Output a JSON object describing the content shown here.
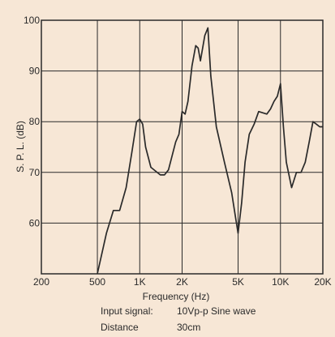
{
  "chart_data": {
    "type": "line",
    "xlabel": "Frequency (Hz)",
    "ylabel": "S. P. L. (dB)",
    "x_scale": "log",
    "xlim": [
      200,
      20000
    ],
    "ylim": [
      50,
      100
    ],
    "x_ticks": [
      {
        "value": 200,
        "label": "200"
      },
      {
        "value": 500,
        "label": "500"
      },
      {
        "value": 1000,
        "label": "1K"
      },
      {
        "value": 2000,
        "label": "2K"
      },
      {
        "value": 5000,
        "label": "5K"
      },
      {
        "value": 10000,
        "label": "10K"
      },
      {
        "value": 20000,
        "label": "20K"
      }
    ],
    "y_ticks": [
      {
        "value": 60,
        "label": "60"
      },
      {
        "value": 70,
        "label": "70"
      },
      {
        "value": 80,
        "label": "80"
      },
      {
        "value": 90,
        "label": "90"
      },
      {
        "value": 100,
        "label": "100"
      }
    ],
    "grid": true,
    "colors": {
      "background": "#f7e7d6",
      "line": "#2a2a2a",
      "grid": "#2a2a2a"
    },
    "series": [
      {
        "points": [
          [
            500,
            50
          ],
          [
            580,
            58
          ],
          [
            650,
            62.5
          ],
          [
            720,
            62.5
          ],
          [
            800,
            67
          ],
          [
            880,
            74
          ],
          [
            950,
            80
          ],
          [
            1000,
            80.5
          ],
          [
            1050,
            79.5
          ],
          [
            1100,
            75
          ],
          [
            1200,
            71
          ],
          [
            1400,
            69.5
          ],
          [
            1500,
            69.5
          ],
          [
            1600,
            70.5
          ],
          [
            1800,
            76
          ],
          [
            1900,
            77.5
          ],
          [
            2000,
            82
          ],
          [
            2100,
            81.5
          ],
          [
            2200,
            84
          ],
          [
            2350,
            91
          ],
          [
            2500,
            95
          ],
          [
            2600,
            94.5
          ],
          [
            2700,
            92
          ],
          [
            2900,
            97
          ],
          [
            3050,
            98.5
          ],
          [
            3200,
            89
          ],
          [
            3500,
            79
          ],
          [
            4000,
            72
          ],
          [
            4500,
            66
          ],
          [
            4800,
            61
          ],
          [
            5000,
            58
          ],
          [
            5300,
            64
          ],
          [
            5600,
            72
          ],
          [
            6000,
            77.5
          ],
          [
            6500,
            79.5
          ],
          [
            7000,
            82
          ],
          [
            8000,
            81.5
          ],
          [
            8500,
            82.5
          ],
          [
            9000,
            84
          ],
          [
            9500,
            85
          ],
          [
            10000,
            87.5
          ],
          [
            10500,
            79
          ],
          [
            11000,
            72
          ],
          [
            12000,
            67
          ],
          [
            13000,
            70
          ],
          [
            14000,
            70
          ],
          [
            15000,
            72
          ],
          [
            16000,
            76
          ],
          [
            17000,
            80
          ],
          [
            18000,
            79.5
          ],
          [
            19000,
            79
          ],
          [
            20000,
            79
          ]
        ]
      }
    ]
  },
  "caption": {
    "input_label": "Input signal:",
    "input_value": "10Vp-p  Sine wave",
    "distance_label": "Distance",
    "distance_value": "30cm"
  }
}
